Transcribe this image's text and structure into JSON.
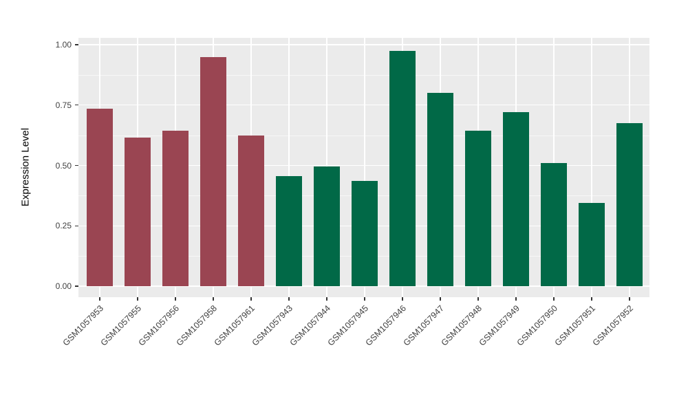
{
  "chart_data": {
    "type": "bar",
    "title": "",
    "xlabel": "",
    "ylabel": "Expression Level",
    "categories": [
      "GSM1057953",
      "GSM1057955",
      "GSM1057956",
      "GSM1057958",
      "GSM1057961",
      "GSM1057943",
      "GSM1057944",
      "GSM1057945",
      "GSM1057946",
      "GSM1057947",
      "GSM1057948",
      "GSM1057949",
      "GSM1057950",
      "GSM1057951",
      "GSM1057952"
    ],
    "values": [
      0.735,
      0.615,
      0.645,
      0.95,
      0.625,
      0.455,
      0.495,
      0.435,
      0.975,
      0.8,
      0.645,
      0.72,
      0.51,
      0.345,
      0.675
    ],
    "groups": [
      "group1",
      "group1",
      "group1",
      "group1",
      "group1",
      "group2",
      "group2",
      "group2",
      "group2",
      "group2",
      "group2",
      "group2",
      "group2",
      "group2",
      "group2"
    ],
    "group_colors": {
      "group1": "#9A4552",
      "group2": "#016947"
    },
    "ylim": [
      0,
      1.0
    ],
    "yticks": [
      0,
      0.25,
      0.5,
      0.75,
      1.0
    ],
    "ytick_labels": [
      "0.00",
      "0.25",
      "0.50",
      "0.75",
      "1.00"
    ],
    "yticks_minor": [
      0.125,
      0.375,
      0.625,
      0.875
    ],
    "x_label_angle": 45,
    "grid": "major and minor horizontal white lines, vertical white lines at bar centers",
    "legend_position": "none",
    "panel_background": "#EBEBEB",
    "plot_background": "#FFFFFF",
    "gridline_color": "#FFFFFF",
    "tick_color": "#333333",
    "axis_text_color": "#404040",
    "axis_title_color": "#000000"
  }
}
